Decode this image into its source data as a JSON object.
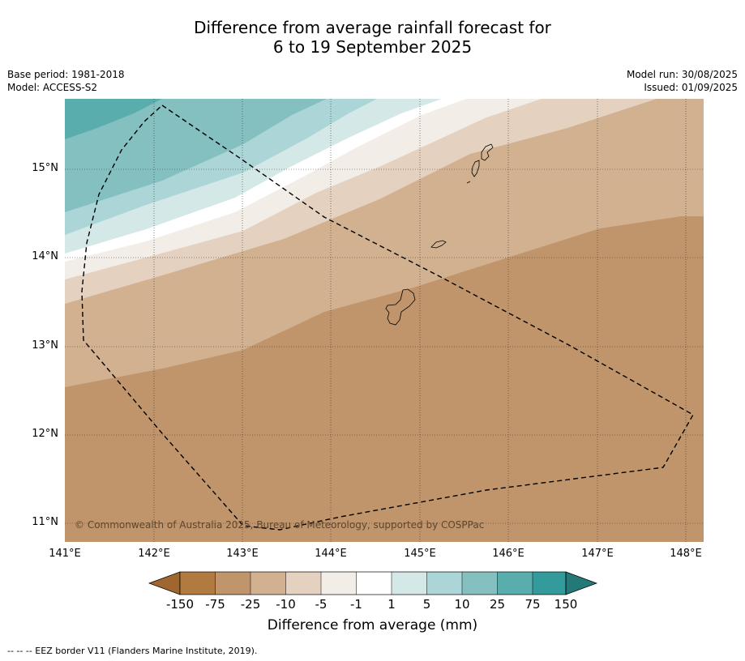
{
  "title": {
    "line1": "Difference from average rainfall forecast for",
    "line2": "6 to 19 September 2025"
  },
  "meta_left": {
    "base_period": "Base period: 1981-2018",
    "model": "Model: ACCESS-S2"
  },
  "meta_right": {
    "model_run": "Model run: 30/08/2025",
    "issued": "Issued: 01/09/2025"
  },
  "map": {
    "lat_ticks": [
      "15°N",
      "14°N",
      "13°N",
      "12°N",
      "11°N"
    ],
    "lon_ticks": [
      "141°E",
      "142°E",
      "143°E",
      "144°E",
      "145°E",
      "146°E",
      "147°E",
      "148°E"
    ],
    "copyright": "© Commonwealth of Australia 2025, Bureau of Meteorology, supported by COSPPac",
    "region": "Mariana Islands (Guam & CNMI)",
    "gridlines": "dotted",
    "eez_border": "dashed"
  },
  "colorbar": {
    "labels": [
      "-150",
      "-75",
      "-25",
      "-10",
      "-5",
      "-1",
      "1",
      "5",
      "10",
      "25",
      "75",
      "150"
    ],
    "colors": [
      "#a0662f",
      "#b07a40",
      "#c0956b",
      "#d2b190",
      "#e4d1c0",
      "#f3ede7",
      "#ffffff",
      "#d5e8e8",
      "#abd5d6",
      "#85c0c1",
      "#5aadad",
      "#339b9b",
      "#237878"
    ],
    "title": "Difference from average (mm)"
  },
  "footer": "--  --  -- EEZ border V11 (Flanders Marine Institute, 2019)."
}
